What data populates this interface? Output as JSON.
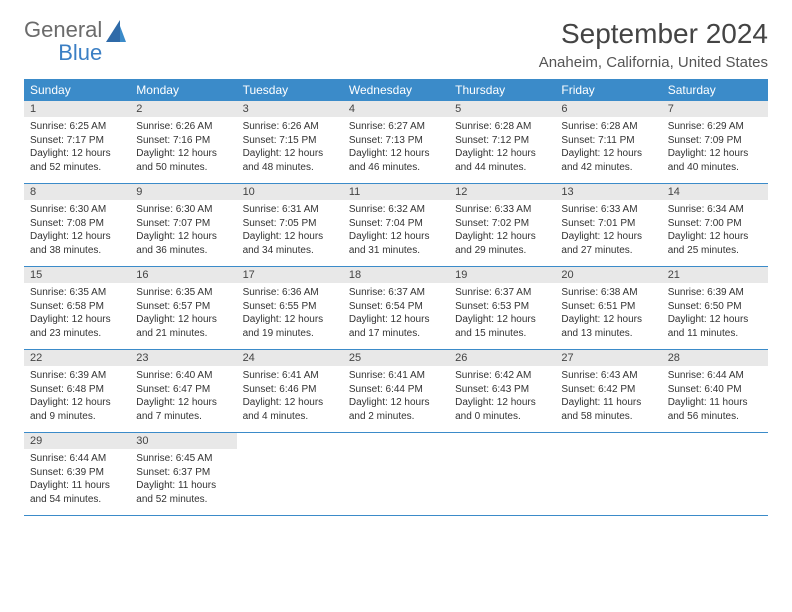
{
  "logo": {
    "line1": "General",
    "line2": "Blue"
  },
  "title": "September 2024",
  "location": "Anaheim, California, United States",
  "colors": {
    "header_bg": "#3b8bc9",
    "header_text": "#ffffff",
    "daynum_bg": "#e8e8e8",
    "week_border": "#3b8bc9",
    "body_text": "#333333",
    "logo_gray": "#6b6b6b",
    "logo_blue": "#3b7fc4",
    "page_bg": "#ffffff"
  },
  "typography": {
    "title_fontsize": 28,
    "location_fontsize": 15,
    "dow_fontsize": 12,
    "daynum_fontsize": 11,
    "body_fontsize": 10
  },
  "days_of_week": [
    "Sunday",
    "Monday",
    "Tuesday",
    "Wednesday",
    "Thursday",
    "Friday",
    "Saturday"
  ],
  "weeks": [
    [
      {
        "n": "1",
        "sr": "Sunrise: 6:25 AM",
        "ss": "Sunset: 7:17 PM",
        "d1": "Daylight: 12 hours",
        "d2": "and 52 minutes."
      },
      {
        "n": "2",
        "sr": "Sunrise: 6:26 AM",
        "ss": "Sunset: 7:16 PM",
        "d1": "Daylight: 12 hours",
        "d2": "and 50 minutes."
      },
      {
        "n": "3",
        "sr": "Sunrise: 6:26 AM",
        "ss": "Sunset: 7:15 PM",
        "d1": "Daylight: 12 hours",
        "d2": "and 48 minutes."
      },
      {
        "n": "4",
        "sr": "Sunrise: 6:27 AM",
        "ss": "Sunset: 7:13 PM",
        "d1": "Daylight: 12 hours",
        "d2": "and 46 minutes."
      },
      {
        "n": "5",
        "sr": "Sunrise: 6:28 AM",
        "ss": "Sunset: 7:12 PM",
        "d1": "Daylight: 12 hours",
        "d2": "and 44 minutes."
      },
      {
        "n": "6",
        "sr": "Sunrise: 6:28 AM",
        "ss": "Sunset: 7:11 PM",
        "d1": "Daylight: 12 hours",
        "d2": "and 42 minutes."
      },
      {
        "n": "7",
        "sr": "Sunrise: 6:29 AM",
        "ss": "Sunset: 7:09 PM",
        "d1": "Daylight: 12 hours",
        "d2": "and 40 minutes."
      }
    ],
    [
      {
        "n": "8",
        "sr": "Sunrise: 6:30 AM",
        "ss": "Sunset: 7:08 PM",
        "d1": "Daylight: 12 hours",
        "d2": "and 38 minutes."
      },
      {
        "n": "9",
        "sr": "Sunrise: 6:30 AM",
        "ss": "Sunset: 7:07 PM",
        "d1": "Daylight: 12 hours",
        "d2": "and 36 minutes."
      },
      {
        "n": "10",
        "sr": "Sunrise: 6:31 AM",
        "ss": "Sunset: 7:05 PM",
        "d1": "Daylight: 12 hours",
        "d2": "and 34 minutes."
      },
      {
        "n": "11",
        "sr": "Sunrise: 6:32 AM",
        "ss": "Sunset: 7:04 PM",
        "d1": "Daylight: 12 hours",
        "d2": "and 31 minutes."
      },
      {
        "n": "12",
        "sr": "Sunrise: 6:33 AM",
        "ss": "Sunset: 7:02 PM",
        "d1": "Daylight: 12 hours",
        "d2": "and 29 minutes."
      },
      {
        "n": "13",
        "sr": "Sunrise: 6:33 AM",
        "ss": "Sunset: 7:01 PM",
        "d1": "Daylight: 12 hours",
        "d2": "and 27 minutes."
      },
      {
        "n": "14",
        "sr": "Sunrise: 6:34 AM",
        "ss": "Sunset: 7:00 PM",
        "d1": "Daylight: 12 hours",
        "d2": "and 25 minutes."
      }
    ],
    [
      {
        "n": "15",
        "sr": "Sunrise: 6:35 AM",
        "ss": "Sunset: 6:58 PM",
        "d1": "Daylight: 12 hours",
        "d2": "and 23 minutes."
      },
      {
        "n": "16",
        "sr": "Sunrise: 6:35 AM",
        "ss": "Sunset: 6:57 PM",
        "d1": "Daylight: 12 hours",
        "d2": "and 21 minutes."
      },
      {
        "n": "17",
        "sr": "Sunrise: 6:36 AM",
        "ss": "Sunset: 6:55 PM",
        "d1": "Daylight: 12 hours",
        "d2": "and 19 minutes."
      },
      {
        "n": "18",
        "sr": "Sunrise: 6:37 AM",
        "ss": "Sunset: 6:54 PM",
        "d1": "Daylight: 12 hours",
        "d2": "and 17 minutes."
      },
      {
        "n": "19",
        "sr": "Sunrise: 6:37 AM",
        "ss": "Sunset: 6:53 PM",
        "d1": "Daylight: 12 hours",
        "d2": "and 15 minutes."
      },
      {
        "n": "20",
        "sr": "Sunrise: 6:38 AM",
        "ss": "Sunset: 6:51 PM",
        "d1": "Daylight: 12 hours",
        "d2": "and 13 minutes."
      },
      {
        "n": "21",
        "sr": "Sunrise: 6:39 AM",
        "ss": "Sunset: 6:50 PM",
        "d1": "Daylight: 12 hours",
        "d2": "and 11 minutes."
      }
    ],
    [
      {
        "n": "22",
        "sr": "Sunrise: 6:39 AM",
        "ss": "Sunset: 6:48 PM",
        "d1": "Daylight: 12 hours",
        "d2": "and 9 minutes."
      },
      {
        "n": "23",
        "sr": "Sunrise: 6:40 AM",
        "ss": "Sunset: 6:47 PM",
        "d1": "Daylight: 12 hours",
        "d2": "and 7 minutes."
      },
      {
        "n": "24",
        "sr": "Sunrise: 6:41 AM",
        "ss": "Sunset: 6:46 PM",
        "d1": "Daylight: 12 hours",
        "d2": "and 4 minutes."
      },
      {
        "n": "25",
        "sr": "Sunrise: 6:41 AM",
        "ss": "Sunset: 6:44 PM",
        "d1": "Daylight: 12 hours",
        "d2": "and 2 minutes."
      },
      {
        "n": "26",
        "sr": "Sunrise: 6:42 AM",
        "ss": "Sunset: 6:43 PM",
        "d1": "Daylight: 12 hours",
        "d2": "and 0 minutes."
      },
      {
        "n": "27",
        "sr": "Sunrise: 6:43 AM",
        "ss": "Sunset: 6:42 PM",
        "d1": "Daylight: 11 hours",
        "d2": "and 58 minutes."
      },
      {
        "n": "28",
        "sr": "Sunrise: 6:44 AM",
        "ss": "Sunset: 6:40 PM",
        "d1": "Daylight: 11 hours",
        "d2": "and 56 minutes."
      }
    ],
    [
      {
        "n": "29",
        "sr": "Sunrise: 6:44 AM",
        "ss": "Sunset: 6:39 PM",
        "d1": "Daylight: 11 hours",
        "d2": "and 54 minutes."
      },
      {
        "n": "30",
        "sr": "Sunrise: 6:45 AM",
        "ss": "Sunset: 6:37 PM",
        "d1": "Daylight: 11 hours",
        "d2": "and 52 minutes."
      },
      {
        "empty": true
      },
      {
        "empty": true
      },
      {
        "empty": true
      },
      {
        "empty": true
      },
      {
        "empty": true
      }
    ]
  ]
}
